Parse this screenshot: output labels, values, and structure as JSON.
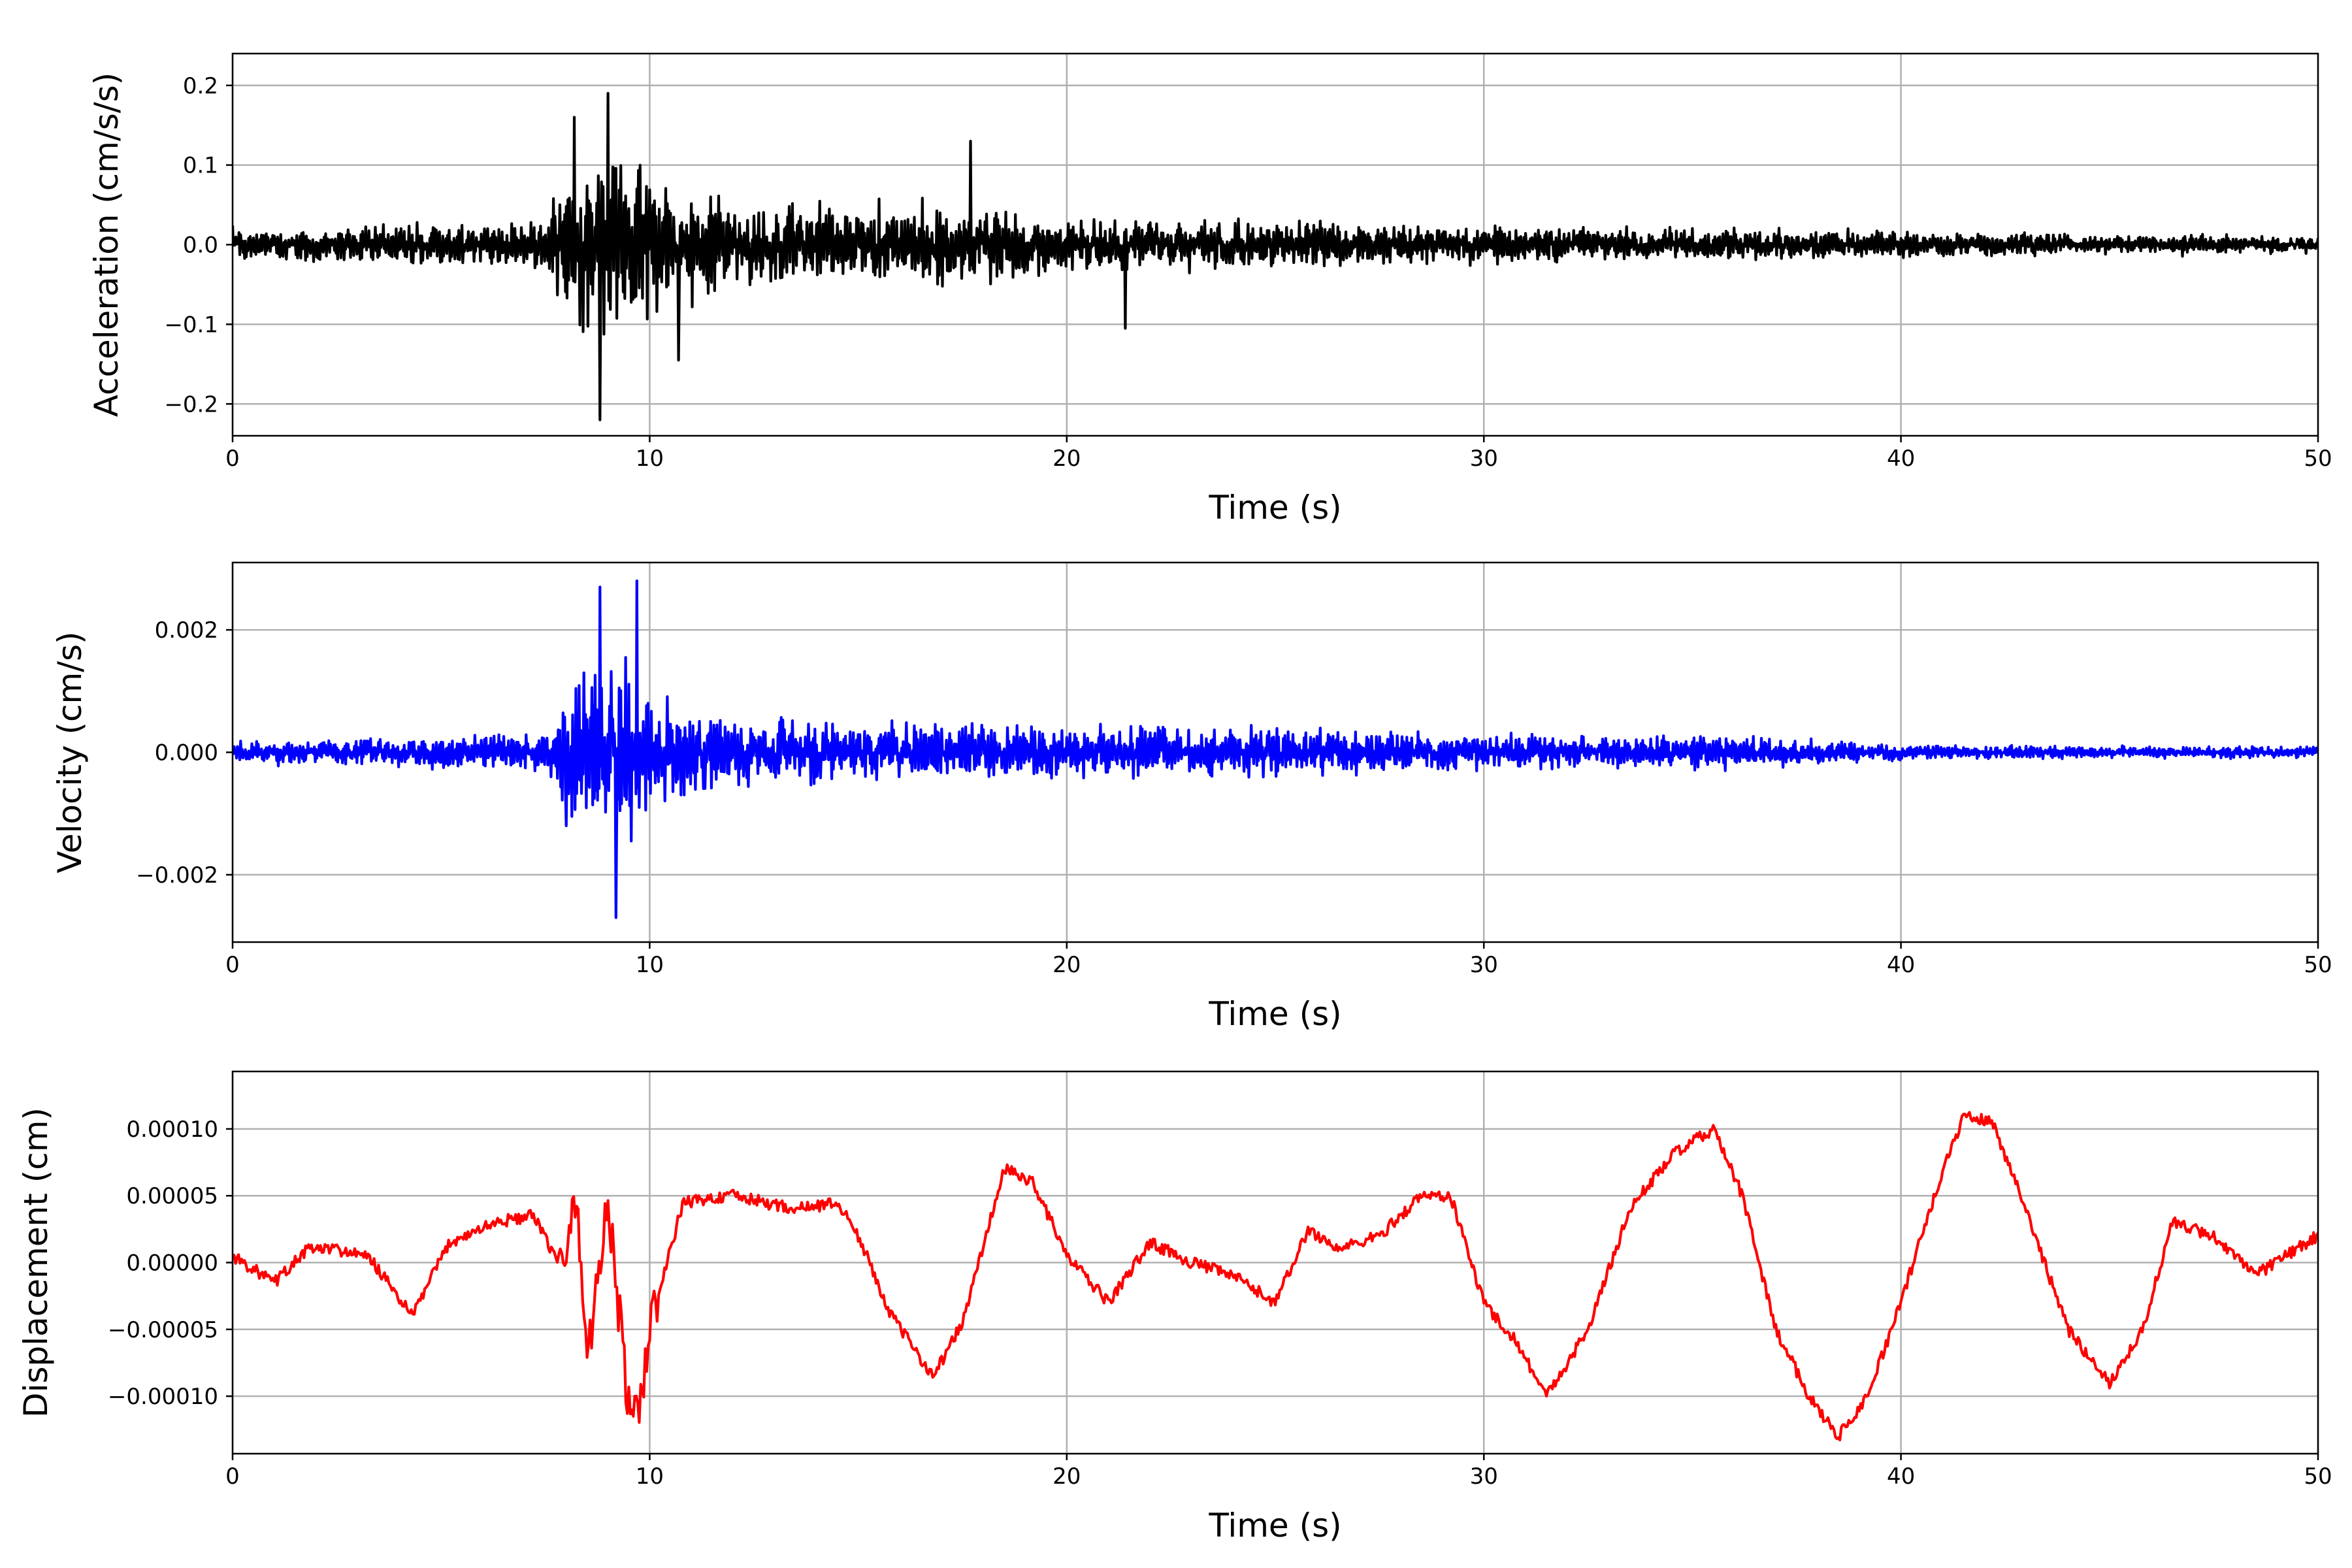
{
  "chart_data": [
    {
      "type": "line",
      "title": "",
      "xlabel": "Time (s)",
      "ylabel": "Acceleration (cm/s/s)",
      "xlim": [
        0,
        50
      ],
      "ylim": [
        -0.24,
        0.24
      ],
      "xticks": [
        "0",
        "10",
        "20",
        "30",
        "40",
        "50"
      ],
      "yticks": [
        "−0.2",
        "−0.1",
        "0.0",
        "0.1",
        "0.2"
      ],
      "ytick_values": [
        -0.2,
        -0.1,
        0.0,
        0.1,
        0.2
      ],
      "grid": true,
      "series": [
        {
          "color": "#000000",
          "peaks": [
            {
              "x": 8.8,
              "y": -0.22
            },
            {
              "x": 9.0,
              "y": 0.19
            },
            {
              "x": 8.2,
              "y": 0.16
            },
            {
              "x": 10.7,
              "y": -0.145
            },
            {
              "x": 17.7,
              "y": 0.13
            },
            {
              "x": 21.4,
              "y": -0.105
            }
          ],
          "envelope": {
            "x": [
              0,
              2,
              4,
              6,
              7.5,
              8.0,
              8.8,
              9.5,
              10.5,
              12,
              14,
              16,
              17.5,
              19,
              21,
              25,
              30,
              35,
              40,
              45,
              50
            ],
            "y": [
              0.03,
              0.035,
              0.04,
              0.04,
              0.05,
              0.12,
              0.17,
              0.16,
              0.12,
              0.08,
              0.07,
              0.075,
              0.08,
              0.06,
              0.05,
              0.045,
              0.035,
              0.03,
              0.025,
              0.02,
              0.015
            ]
          }
        }
      ]
    },
    {
      "type": "line",
      "title": "",
      "xlabel": "Time (s)",
      "ylabel": "Velocity (cm/s)",
      "xlim": [
        0,
        50
      ],
      "ylim": [
        -0.0031,
        0.0031
      ],
      "xticks": [
        "0",
        "10",
        "20",
        "30",
        "40",
        "50"
      ],
      "yticks": [
        "−0.002",
        "0.000",
        "0.002"
      ],
      "ytick_values": [
        -0.002,
        0.0,
        0.002
      ],
      "grid": true,
      "series": [
        {
          "color": "#0000ff",
          "peaks": [
            {
              "x": 9.7,
              "y": 0.0028
            },
            {
              "x": 9.2,
              "y": -0.0027
            },
            {
              "x": 8.8,
              "y": 0.0027
            },
            {
              "x": 8.0,
              "y": -0.0012
            }
          ],
          "envelope": {
            "x": [
              0,
              2,
              4,
              6,
              7.5,
              8.0,
              8.8,
              9.6,
              10.5,
              12,
              14,
              16,
              18,
              20,
              25,
              30,
              35,
              38,
              40,
              45,
              50
            ],
            "y": [
              0.00025,
              0.0003,
              0.00035,
              0.0004,
              0.0005,
              0.0015,
              0.0025,
              0.0024,
              0.0012,
              0.0008,
              0.0007,
              0.0007,
              0.0008,
              0.0006,
              0.0006,
              0.0004,
              0.0004,
              0.0003,
              0.0002,
              0.00015,
              0.00015
            ]
          }
        }
      ]
    },
    {
      "type": "line",
      "title": "",
      "xlabel": "Time (s)",
      "ylabel": "Displacement (cm)",
      "xlim": [
        0,
        50
      ],
      "ylim": [
        -0.000143,
        0.000143
      ],
      "xticks": [
        "0",
        "10",
        "20",
        "30",
        "40",
        "50"
      ],
      "yticks": [
        "−0.00010",
        "−0.00005",
        "0.00000",
        "0.00005",
        "0.00010"
      ],
      "ytick_values": [
        -0.0001,
        -5e-05,
        0.0,
        5e-05,
        0.0001
      ],
      "grid": true,
      "series": [
        {
          "color": "#ff0000",
          "x": [
            0,
            1,
            1.8,
            2.5,
            3.3,
            4.3,
            5.2,
            6.3,
            7.2,
            8.0,
            8.2,
            8.5,
            9.0,
            9.5,
            9.7,
            10.0,
            10.8,
            12.0,
            13.5,
            14.5,
            15.0,
            15.8,
            16.8,
            17.5,
            18.5,
            19.2,
            20.0,
            21.0,
            22.0,
            23.0,
            24.0,
            25.0,
            25.8,
            26.5,
            27.5,
            28.5,
            29.2,
            30.0,
            30.8,
            31.5,
            32.5,
            33.5,
            34.5,
            35.5,
            36.2,
            37.0,
            37.8,
            38.5,
            39.2,
            40.0,
            40.8,
            41.5,
            42.2,
            43.0,
            44.0,
            45.0,
            45.8,
            46.5,
            47.5,
            48.5,
            49.2,
            50.0
          ],
          "y": [
            5e-06,
            -1.5e-05,
            1e-05,
            1e-05,
            3e-06,
            -4e-05,
            1.5e-05,
            3e-05,
            3.5e-05,
            -1e-05,
            6e-05,
            -7e-05,
            4.5e-05,
            -0.00011,
            -0.00012,
            -5e-05,
            4.5e-05,
            5e-05,
            4e-05,
            4.5e-05,
            2e-05,
            -4e-05,
            -8.5e-05,
            -4.5e-05,
            7e-05,
            6e-05,
            5e-06,
            -3e-05,
            1.5e-05,
            0.0,
            -1e-05,
            -3e-05,
            2.5e-05,
            1e-05,
            2e-05,
            5e-05,
            5e-05,
            -3e-05,
            -6e-05,
            -0.0001,
            -5e-05,
            4e-05,
            8e-05,
            0.0001,
            5e-05,
            -5e-05,
            -0.0001,
            -0.00013,
            -0.0001,
            -3e-05,
            5e-05,
            0.00011,
            0.000105,
            4e-05,
            -5e-05,
            -9e-05,
            -5e-05,
            3e-05,
            2e-05,
            -1e-05,
            5e-06,
            2e-05
          ]
        }
      ]
    }
  ]
}
